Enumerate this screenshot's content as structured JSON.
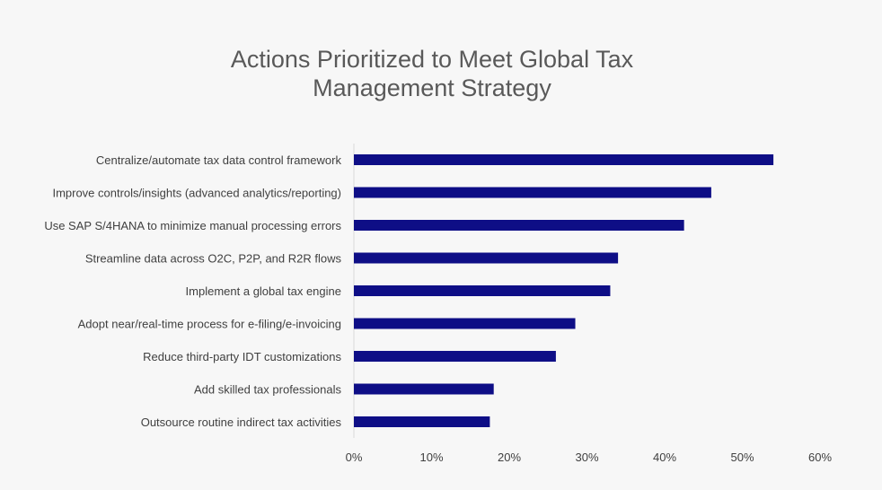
{
  "chart_data": {
    "type": "bar",
    "orientation": "horizontal",
    "title_lines": [
      "Actions Prioritized to Meet Global Tax",
      "Management Strategy"
    ],
    "categories": [
      "Centralize/automate tax data control framework",
      "Improve controls/insights (advanced analytics/reporting)",
      "Use SAP S/4HANA to minimize manual processing errors",
      "Streamline data across O2C, P2P, and R2R flows",
      "Implement a global tax engine",
      "Adopt near/real-time process for e-filing/e-invoicing",
      "Reduce third-party IDT customizations",
      "Add skilled tax professionals",
      "Outsource routine indirect tax activities"
    ],
    "values": [
      0.54,
      0.46,
      0.425,
      0.34,
      0.33,
      0.285,
      0.26,
      0.18,
      0.175
    ],
    "xlim": [
      0,
      0.6
    ],
    "xticks": [
      "0%",
      "10%",
      "20%",
      "30%",
      "40%",
      "50%",
      "60%"
    ],
    "tick_values": [
      0,
      0.1,
      0.2,
      0.3,
      0.4,
      0.5,
      0.6
    ],
    "grid": false,
    "bar_color": "#0e0e86",
    "axis_color": "#d9d9d9"
  }
}
